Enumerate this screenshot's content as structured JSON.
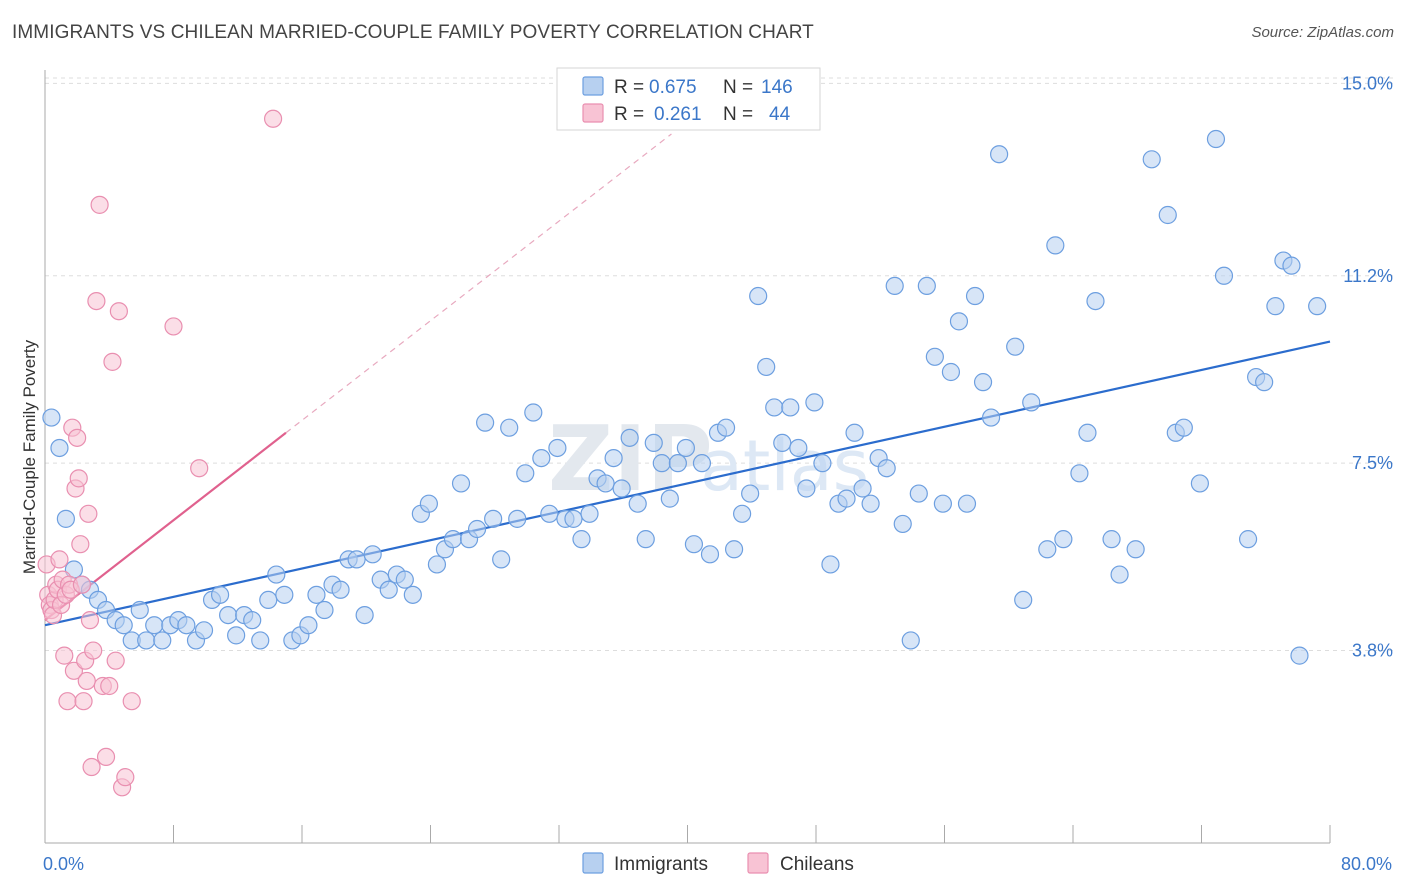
{
  "title": "IMMIGRANTS VS CHILEAN MARRIED-COUPLE FAMILY POVERTY CORRELATION CHART",
  "source": "Source: ZipAtlas.com",
  "watermark": {
    "part1": "ZIP",
    "part2": "atlas"
  },
  "legend_top": [
    {
      "r_label": "R =",
      "r_value": "0.675",
      "n_label": "N =",
      "n_value": "146"
    },
    {
      "r_label": "R =",
      "r_value": "0.261",
      "n_label": "N =",
      "n_value": "44"
    }
  ],
  "legend_bottom": [
    "Immigrants",
    "Chileans"
  ],
  "colors": {
    "immigrants_fill": "#b7d0f0",
    "immigrants_stroke": "#6d9fe0",
    "immigrants_line": "#2b6ccd",
    "chileans_fill": "#f8c3d4",
    "chileans_stroke": "#e98fb0",
    "chileans_line": "#e0618e",
    "tick_text": "#3b77c9",
    "grid": "#dddddd"
  },
  "chart_data": {
    "type": "scatter",
    "title": "IMMIGRANTS VS CHILEAN MARRIED-COUPLE FAMILY POVERTY CORRELATION CHART",
    "xlabel": "",
    "ylabel": "Married-Couple Family Poverty",
    "xlim": [
      0,
      80
    ],
    "ylim": [
      0,
      15.5
    ],
    "x_tick_labels": [
      {
        "value": 0,
        "label": "0.0%"
      },
      {
        "value": 80,
        "label": "80.0%"
      }
    ],
    "y_tick_labels": [
      {
        "value": 3.8,
        "label": "3.8%"
      },
      {
        "value": 7.5,
        "label": "7.5%"
      },
      {
        "value": 11.2,
        "label": "11.2%"
      },
      {
        "value": 15.0,
        "label": "15.0%"
      }
    ],
    "grid": true,
    "legend_position": "top-center",
    "series": [
      {
        "name": "Immigrants",
        "r": 0.675,
        "n": 146,
        "trend": {
          "x": [
            0,
            80
          ],
          "y": [
            4.3,
            9.9
          ]
        },
        "points": [
          [
            0.4,
            8.4
          ],
          [
            0.9,
            7.8
          ],
          [
            1.3,
            6.4
          ],
          [
            1.8,
            5.4
          ],
          [
            2.3,
            5.1
          ],
          [
            2.8,
            5.0
          ],
          [
            3.3,
            4.8
          ],
          [
            3.8,
            4.6
          ],
          [
            4.4,
            4.4
          ],
          [
            4.9,
            4.3
          ],
          [
            5.4,
            4.0
          ],
          [
            5.9,
            4.6
          ],
          [
            6.3,
            4.0
          ],
          [
            6.8,
            4.3
          ],
          [
            7.3,
            4.0
          ],
          [
            7.8,
            4.3
          ],
          [
            8.3,
            4.4
          ],
          [
            8.8,
            4.3
          ],
          [
            9.4,
            4.0
          ],
          [
            9.9,
            4.2
          ],
          [
            10.4,
            4.8
          ],
          [
            10.9,
            4.9
          ],
          [
            11.4,
            4.5
          ],
          [
            11.9,
            4.1
          ],
          [
            12.4,
            4.5
          ],
          [
            12.9,
            4.4
          ],
          [
            13.4,
            4.0
          ],
          [
            13.9,
            4.8
          ],
          [
            14.4,
            5.3
          ],
          [
            14.9,
            4.9
          ],
          [
            15.4,
            4.0
          ],
          [
            15.9,
            4.1
          ],
          [
            16.4,
            4.3
          ],
          [
            16.9,
            4.9
          ],
          [
            17.4,
            4.6
          ],
          [
            17.9,
            5.1
          ],
          [
            18.4,
            5.0
          ],
          [
            18.9,
            5.6
          ],
          [
            19.4,
            5.6
          ],
          [
            19.9,
            4.5
          ],
          [
            20.4,
            5.7
          ],
          [
            20.9,
            5.2
          ],
          [
            21.4,
            5.0
          ],
          [
            21.9,
            5.3
          ],
          [
            22.4,
            5.2
          ],
          [
            22.9,
            4.9
          ],
          [
            23.4,
            6.5
          ],
          [
            23.9,
            6.7
          ],
          [
            24.4,
            5.5
          ],
          [
            24.9,
            5.8
          ],
          [
            25.4,
            6.0
          ],
          [
            25.9,
            7.1
          ],
          [
            26.4,
            6.0
          ],
          [
            26.9,
            6.2
          ],
          [
            27.4,
            8.3
          ],
          [
            27.9,
            6.4
          ],
          [
            28.4,
            5.6
          ],
          [
            28.9,
            8.2
          ],
          [
            29.4,
            6.4
          ],
          [
            29.9,
            7.3
          ],
          [
            30.4,
            8.5
          ],
          [
            30.9,
            7.6
          ],
          [
            31.4,
            6.5
          ],
          [
            31.9,
            7.8
          ],
          [
            32.4,
            6.4
          ],
          [
            32.9,
            6.4
          ],
          [
            33.4,
            6.0
          ],
          [
            33.9,
            6.5
          ],
          [
            34.4,
            7.2
          ],
          [
            34.9,
            7.1
          ],
          [
            35.4,
            7.6
          ],
          [
            35.9,
            7.0
          ],
          [
            36.4,
            8.0
          ],
          [
            36.9,
            6.7
          ],
          [
            37.4,
            6.0
          ],
          [
            37.9,
            7.9
          ],
          [
            38.4,
            7.5
          ],
          [
            38.9,
            6.8
          ],
          [
            39.4,
            7.5
          ],
          [
            39.9,
            7.8
          ],
          [
            40.4,
            5.9
          ],
          [
            40.9,
            7.5
          ],
          [
            41.4,
            5.7
          ],
          [
            41.9,
            8.1
          ],
          [
            42.4,
            8.2
          ],
          [
            42.9,
            5.8
          ],
          [
            43.4,
            6.5
          ],
          [
            43.9,
            6.9
          ],
          [
            44.4,
            10.8
          ],
          [
            44.9,
            9.4
          ],
          [
            45.4,
            8.6
          ],
          [
            45.9,
            7.9
          ],
          [
            46.4,
            8.6
          ],
          [
            46.9,
            7.8
          ],
          [
            47.4,
            7.0
          ],
          [
            47.9,
            8.7
          ],
          [
            48.4,
            7.5
          ],
          [
            48.9,
            5.5
          ],
          [
            49.4,
            6.7
          ],
          [
            49.9,
            6.8
          ],
          [
            50.4,
            8.1
          ],
          [
            50.9,
            7.0
          ],
          [
            51.4,
            6.7
          ],
          [
            51.9,
            7.6
          ],
          [
            52.4,
            7.4
          ],
          [
            52.9,
            11.0
          ],
          [
            53.4,
            6.3
          ],
          [
            53.9,
            4.0
          ],
          [
            54.4,
            6.9
          ],
          [
            54.9,
            11.0
          ],
          [
            55.4,
            9.6
          ],
          [
            55.9,
            6.7
          ],
          [
            56.4,
            9.3
          ],
          [
            56.9,
            10.3
          ],
          [
            57.4,
            6.7
          ],
          [
            57.9,
            10.8
          ],
          [
            58.4,
            9.1
          ],
          [
            58.9,
            8.4
          ],
          [
            59.4,
            13.6
          ],
          [
            60.4,
            9.8
          ],
          [
            60.9,
            4.8
          ],
          [
            61.4,
            8.7
          ],
          [
            62.4,
            5.8
          ],
          [
            62.9,
            11.8
          ],
          [
            63.4,
            6.0
          ],
          [
            64.4,
            7.3
          ],
          [
            64.9,
            8.1
          ],
          [
            65.4,
            10.7
          ],
          [
            66.4,
            6.0
          ],
          [
            66.9,
            5.3
          ],
          [
            67.9,
            5.8
          ],
          [
            68.9,
            13.5
          ],
          [
            69.9,
            12.4
          ],
          [
            70.4,
            8.1
          ],
          [
            70.9,
            8.2
          ],
          [
            71.9,
            7.1
          ],
          [
            72.9,
            13.9
          ],
          [
            73.4,
            11.2
          ],
          [
            74.9,
            6.0
          ],
          [
            75.4,
            9.2
          ],
          [
            75.9,
            9.1
          ],
          [
            76.6,
            10.6
          ],
          [
            77.1,
            11.5
          ],
          [
            77.6,
            11.4
          ],
          [
            78.1,
            3.7
          ],
          [
            79.2,
            10.6
          ]
        ]
      },
      {
        "name": "Chileans",
        "r": 0.261,
        "n": 44,
        "trend": {
          "x": [
            0,
            15
          ],
          "y": [
            4.4,
            8.1
          ],
          "dashed_extension": {
            "x": [
              15,
              39
            ],
            "y": [
              8.1,
              14.0
            ]
          }
        },
        "points": [
          [
            0.1,
            5.5
          ],
          [
            0.2,
            4.9
          ],
          [
            0.3,
            4.7
          ],
          [
            0.4,
            4.6
          ],
          [
            0.5,
            4.5
          ],
          [
            0.6,
            4.8
          ],
          [
            0.7,
            5.1
          ],
          [
            0.8,
            5.0
          ],
          [
            0.9,
            5.6
          ],
          [
            1.0,
            4.7
          ],
          [
            1.1,
            5.2
          ],
          [
            1.2,
            3.7
          ],
          [
            1.3,
            4.9
          ],
          [
            1.4,
            2.8
          ],
          [
            1.5,
            5.1
          ],
          [
            1.6,
            5.0
          ],
          [
            1.7,
            8.2
          ],
          [
            1.8,
            3.4
          ],
          [
            1.9,
            7.0
          ],
          [
            2.0,
            8.0
          ],
          [
            2.1,
            7.2
          ],
          [
            2.2,
            5.9
          ],
          [
            2.3,
            5.1
          ],
          [
            2.4,
            2.8
          ],
          [
            2.5,
            3.6
          ],
          [
            2.6,
            3.2
          ],
          [
            2.7,
            6.5
          ],
          [
            2.8,
            4.4
          ],
          [
            2.9,
            1.5
          ],
          [
            3.0,
            3.8
          ],
          [
            3.2,
            10.7
          ],
          [
            3.4,
            12.6
          ],
          [
            3.6,
            3.1
          ],
          [
            3.8,
            1.7
          ],
          [
            4.0,
            3.1
          ],
          [
            4.2,
            9.5
          ],
          [
            4.4,
            3.6
          ],
          [
            4.6,
            10.5
          ],
          [
            4.8,
            1.1
          ],
          [
            5.0,
            1.3
          ],
          [
            5.4,
            2.8
          ],
          [
            8.0,
            10.2
          ],
          [
            9.6,
            7.4
          ],
          [
            14.2,
            14.3
          ]
        ]
      }
    ]
  }
}
